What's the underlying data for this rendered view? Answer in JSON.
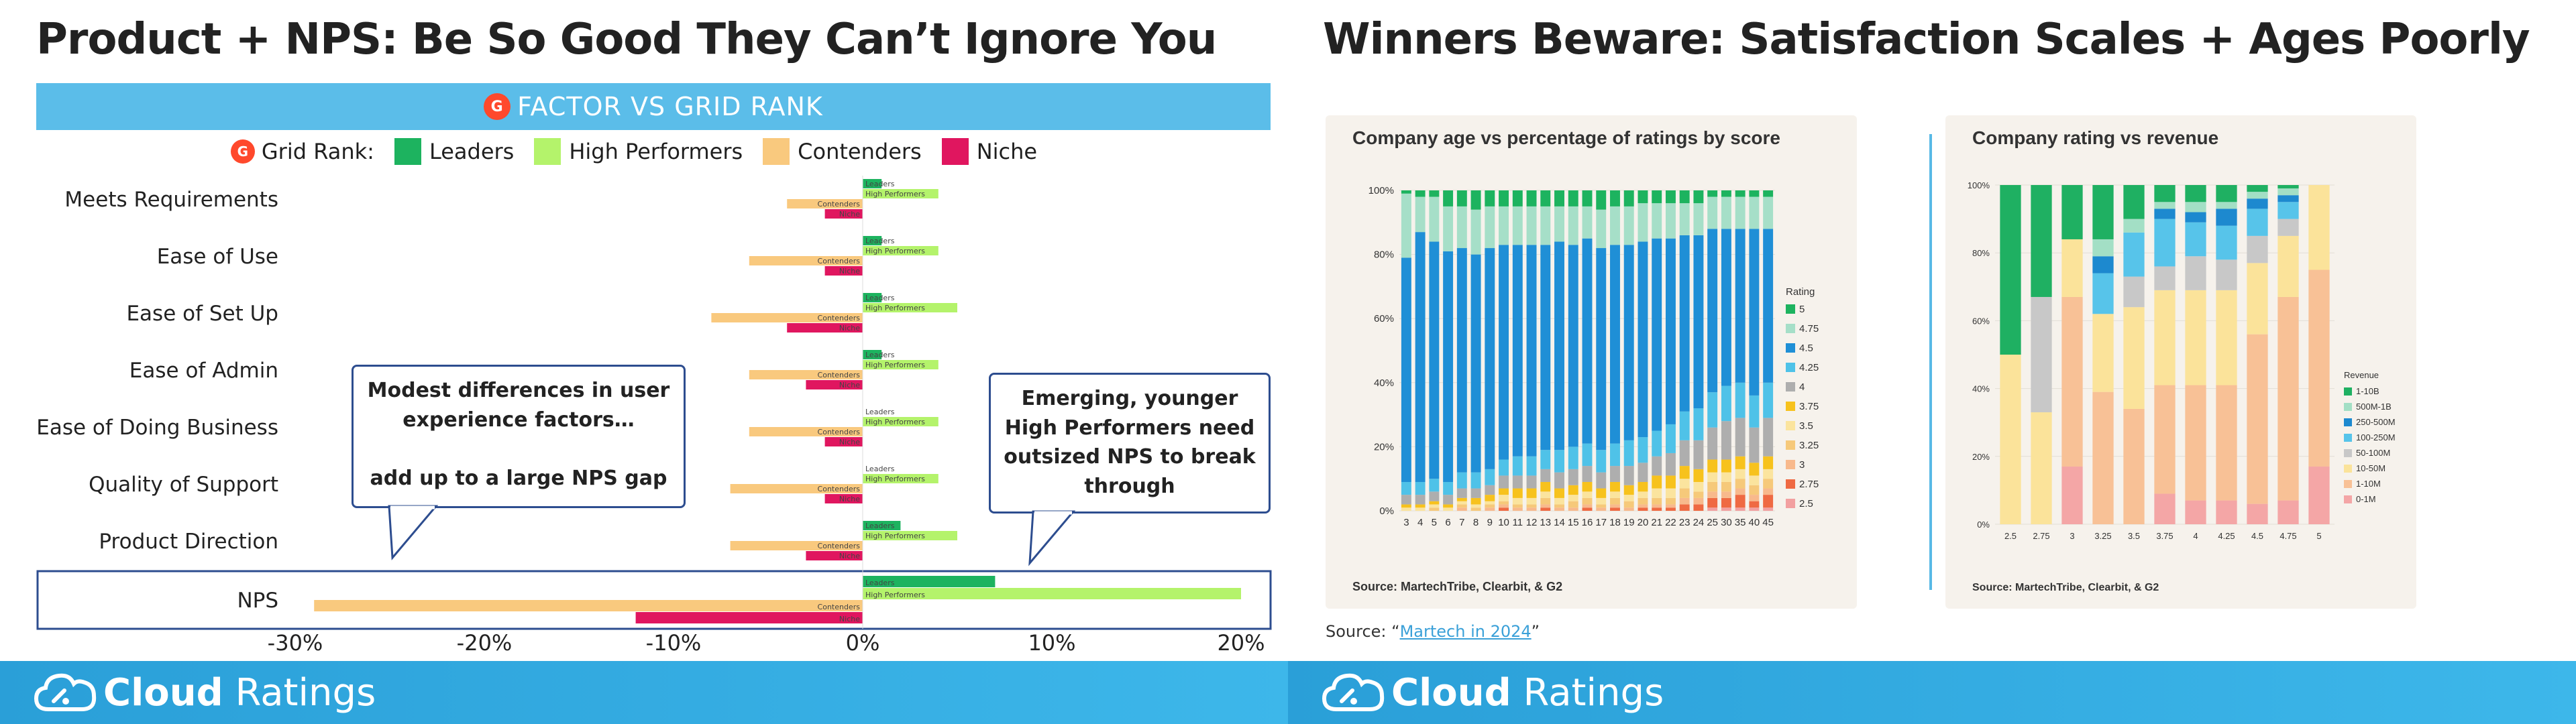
{
  "left": {
    "title": "Product + NPS: Be So Good They Can’t Ignore You",
    "band": {
      "logo": "G",
      "title": "FACTOR VS GRID RANK"
    },
    "legend": {
      "label": "Grid Rank:",
      "items": [
        {
          "name": "Leaders",
          "color": "#1db35f"
        },
        {
          "name": "High Performers",
          "color": "#b4f36b"
        },
        {
          "name": "Contenders",
          "color": "#f9c97e"
        },
        {
          "name": "Niche",
          "color": "#e0165f"
        }
      ]
    },
    "callouts": [
      {
        "text": "Modest differences in user\nexperience factors…\n\nadd up to a large NPS gap"
      },
      {
        "text": "Emerging, younger\nHigh Performers need\noutsized NPS to break\nthrough"
      }
    ],
    "chart_data": {
      "type": "bar",
      "orientation": "horizontal",
      "categories": [
        "Meets Requirements",
        "Ease of Use",
        "Ease of Set Up",
        "Ease of Admin",
        "Ease of Doing Business",
        "Quality of Support",
        "Product Direction",
        "NPS"
      ],
      "series": [
        {
          "name": "Leaders",
          "color": "#1db35f",
          "values": [
            1,
            1,
            1,
            1,
            0,
            0,
            2,
            7
          ]
        },
        {
          "name": "High Performers",
          "color": "#b4f36b",
          "values": [
            4,
            4,
            5,
            4,
            4,
            4,
            5,
            20
          ]
        },
        {
          "name": "Contenders",
          "color": "#f9c97e",
          "values": [
            -4,
            -6,
            -8,
            -6,
            -6,
            -7,
            -7,
            -29
          ]
        },
        {
          "name": "Niche",
          "color": "#e0165f",
          "values": [
            -2,
            -2,
            -4,
            -3,
            -2,
            -2,
            -3,
            -12
          ]
        }
      ],
      "xlim": [
        -30,
        20
      ],
      "xticks": [
        "-30%",
        "-20%",
        "-10%",
        "0%",
        "10%",
        "20%"
      ],
      "highlight": "NPS"
    },
    "footer": {
      "brand_bold": "Cloud",
      "brand_rest": " Ratings"
    }
  },
  "right": {
    "title": "Winners Beware: Satisfaction Scales + Ages Poorly",
    "source_prefix": "Source: “",
    "source_link": "Martech in 2024",
    "source_suffix": "”",
    "footer": {
      "brand_bold": "Cloud",
      "brand_rest": " Ratings"
    },
    "charts": [
      {
        "chart_data": {
          "type": "bar",
          "stacked": true,
          "title": "Company age vs percentage of ratings by score",
          "note": "Source: MartechTribe, Clearbit, & G2",
          "legend_title": "Rating",
          "categories": [
            "3",
            "4",
            "5",
            "6",
            "7",
            "8",
            "9",
            "10",
            "11",
            "12",
            "13",
            "14",
            "15",
            "16",
            "17",
            "18",
            "19",
            "20",
            "21",
            "22",
            "23",
            "24",
            "25",
            "30",
            "35",
            "40",
            "45"
          ],
          "yticks": [
            "0%",
            "20%",
            "40%",
            "60%",
            "80%",
            "100%"
          ],
          "series": [
            {
              "name": "2.5",
              "color": "#f2a0a0",
              "values": [
                0,
                0,
                0,
                0,
                0,
                0,
                0,
                0,
                0,
                0,
                0,
                0,
                0,
                0,
                0,
                0,
                0,
                0,
                0,
                0,
                0,
                0,
                1,
                1,
                1,
                1,
                1
              ]
            },
            {
              "name": "2.75",
              "color": "#ef6a43",
              "values": [
                0,
                0,
                0,
                0,
                0,
                0,
                0,
                1,
                0,
                0,
                1,
                0,
                0,
                1,
                0,
                1,
                0,
                1,
                1,
                1,
                2,
                2,
                3,
                3,
                4,
                2,
                4
              ]
            },
            {
              "name": "3",
              "color": "#f8b98c",
              "values": [
                0,
                0,
                0,
                0,
                1,
                0,
                1,
                1,
                1,
                1,
                1,
                1,
                1,
                1,
                1,
                1,
                1,
                1,
                1,
                1,
                2,
                2,
                2,
                2,
                2,
                2,
                2
              ]
            },
            {
              "name": "3.25",
              "color": "#f6c97a",
              "values": [
                0,
                0,
                1,
                0,
                1,
                1,
                1,
                1,
                1,
                1,
                2,
                1,
                2,
                2,
                1,
                2,
                2,
                2,
                2,
                2,
                3,
                2,
                3,
                3,
                3,
                3,
                3
              ]
            },
            {
              "name": "3.5",
              "color": "#fbe49e",
              "values": [
                1,
                1,
                1,
                1,
                1,
                1,
                1,
                2,
                2,
                2,
                2,
                2,
                2,
                2,
                2,
                2,
                2,
                2,
                3,
                3,
                3,
                3,
                3,
                3,
                3,
                3,
                3
              ]
            },
            {
              "name": "3.75",
              "color": "#f7c21d",
              "values": [
                1,
                1,
                1,
                1,
                1,
                2,
                2,
                2,
                3,
                3,
                3,
                3,
                3,
                3,
                3,
                3,
                3,
                3,
                4,
                4,
                4,
                4,
                4,
                4,
                4,
                4,
                4
              ]
            },
            {
              "name": "4",
              "color": "#aeaeae",
              "values": [
                3,
                3,
                3,
                3,
                3,
                3,
                3,
                4,
                4,
                4,
                4,
                5,
                5,
                5,
                5,
                5,
                6,
                6,
                6,
                7,
                8,
                9,
                10,
                12,
                12,
                11,
                12
              ]
            },
            {
              "name": "4.25",
              "color": "#4fc2e8",
              "values": [
                4,
                4,
                4,
                4,
                5,
                5,
                5,
                5,
                6,
                6,
                6,
                7,
                7,
                7,
                7,
                7,
                8,
                8,
                8,
                9,
                9,
                10,
                11,
                11,
                11,
                10,
                11
              ]
            },
            {
              "name": "4.5",
              "color": "#1f8fd6",
              "values": [
                70,
                78,
                74,
                72,
                70,
                68,
                69,
                67,
                66,
                66,
                64,
                65,
                63,
                64,
                63,
                62,
                61,
                61,
                60,
                58,
                55,
                54,
                51,
                49,
                48,
                52,
                48
              ]
            },
            {
              "name": "4.75",
              "color": "#a6dfc8",
              "values": [
                20,
                11,
                14,
                14,
                13,
                14,
                13,
                12,
                12,
                12,
                12,
                11,
                12,
                10,
                12,
                12,
                12,
                12,
                11,
                11,
                10,
                10,
                10,
                10,
                10,
                10,
                10
              ]
            },
            {
              "name": "5",
              "color": "#1db35f",
              "values": [
                1,
                2,
                2,
                5,
                5,
                6,
                5,
                5,
                5,
                5,
                5,
                5,
                5,
                5,
                6,
                5,
                5,
                4,
                4,
                4,
                4,
                4,
                2,
                2,
                2,
                2,
                2
              ]
            }
          ]
        }
      },
      {
        "chart_data": {
          "type": "bar",
          "stacked": true,
          "title": "Company rating vs revenue",
          "note": "Source: MartechTribe, Clearbit, & G2",
          "legend_title": "Revenue",
          "categories": [
            "2.5",
            "2.75",
            "3",
            "3.25",
            "3.5",
            "3.75",
            "4",
            "4.25",
            "4.5",
            "4.75",
            "5"
          ],
          "yticks": [
            "0%",
            "20%",
            "40%",
            "60%",
            "80%",
            "100%"
          ],
          "series": [
            {
              "name": "0-1M",
              "color": "#f4a6a6",
              "values": [
                0,
                0,
                17,
                0,
                0,
                9,
                7,
                7,
                6,
                7,
                17
              ]
            },
            {
              "name": "1-10M",
              "color": "#f8c196",
              "values": [
                0,
                0,
                50,
                39,
                34,
                32,
                34,
                34,
                50,
                60,
                58
              ]
            },
            {
              "name": "10-50M",
              "color": "#fbe39a",
              "values": [
                50,
                33,
                17,
                23,
                30,
                28,
                28,
                28,
                21,
                18,
                25
              ]
            },
            {
              "name": "50-100M",
              "color": "#c8c8c8",
              "values": [
                0,
                34,
                0,
                0,
                9,
                7,
                10,
                9,
                8,
                5,
                0
              ]
            },
            {
              "name": "100-250M",
              "color": "#57c4ea",
              "values": [
                0,
                0,
                0,
                12,
                13,
                14,
                10,
                10,
                8,
                5,
                0
              ]
            },
            {
              "name": "250-500M",
              "color": "#1d89cf",
              "values": [
                0,
                0,
                0,
                5,
                0,
                3,
                3,
                5,
                3,
                2,
                0
              ]
            },
            {
              "name": "500M-1B",
              "color": "#a3dfc5",
              "values": [
                0,
                0,
                0,
                5,
                4,
                2,
                3,
                2,
                2,
                2,
                0
              ]
            },
            {
              "name": "1-10B",
              "color": "#1fb062",
              "values": [
                50,
                33,
                16,
                16,
                10,
                5,
                5,
                5,
                2,
                1,
                0
              ]
            }
          ]
        }
      }
    ]
  }
}
